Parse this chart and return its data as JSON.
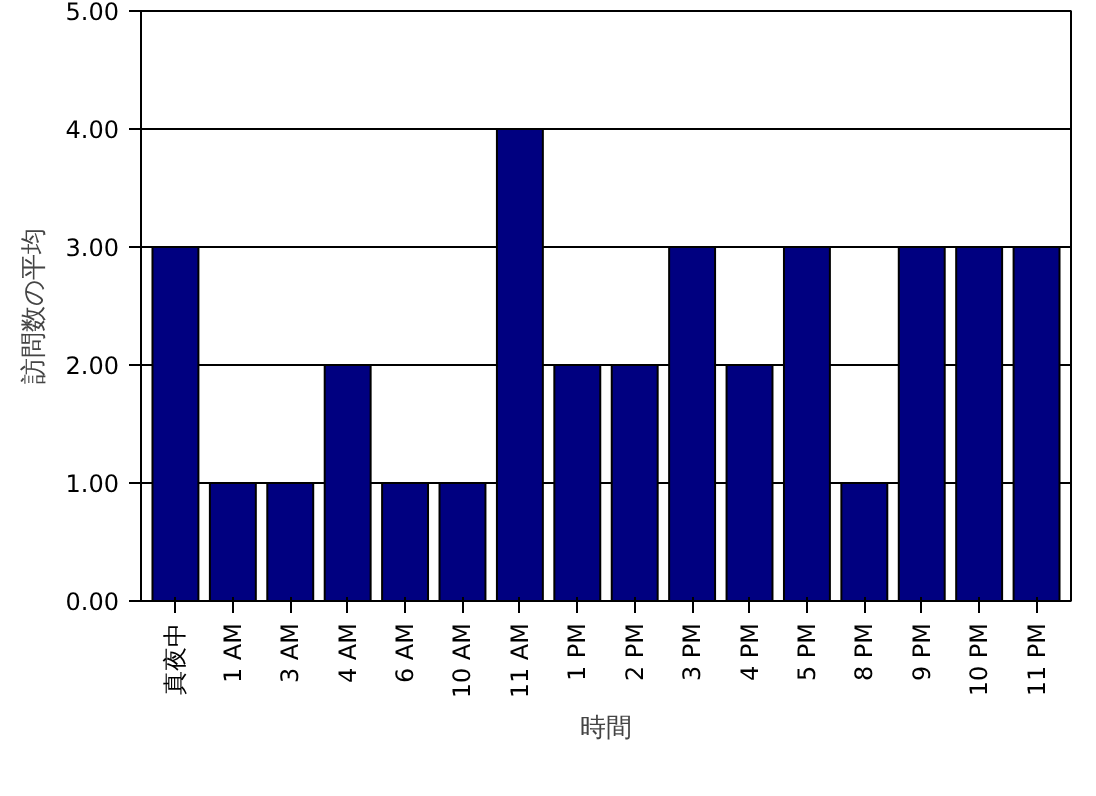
{
  "chart_data": {
    "type": "bar",
    "xlabel": "時間",
    "ylabel": "訪問数の平均",
    "categories": [
      "真夜中",
      "1 AM",
      "3 AM",
      "4 AM",
      "6 AM",
      "10 AM",
      "11 AM",
      "1 PM",
      "2 PM",
      "3 PM",
      "4 PM",
      "5 PM",
      "8 PM",
      "9 PM",
      "10 PM",
      "11 PM"
    ],
    "values": [
      3,
      1,
      1,
      2,
      1,
      1,
      4,
      2,
      2,
      3,
      2,
      3,
      1,
      3,
      3,
      3
    ],
    "color": "#000080",
    "ylim": [
      0,
      5
    ],
    "yticks": [
      {
        "value": 0,
        "label": "0.00"
      },
      {
        "value": 1,
        "label": "1.00"
      },
      {
        "value": 2,
        "label": "2.00"
      },
      {
        "value": 3,
        "label": "3.00"
      },
      {
        "value": 4,
        "label": "4.00"
      },
      {
        "value": 5,
        "label": "5.00"
      }
    ],
    "grid": "y"
  }
}
